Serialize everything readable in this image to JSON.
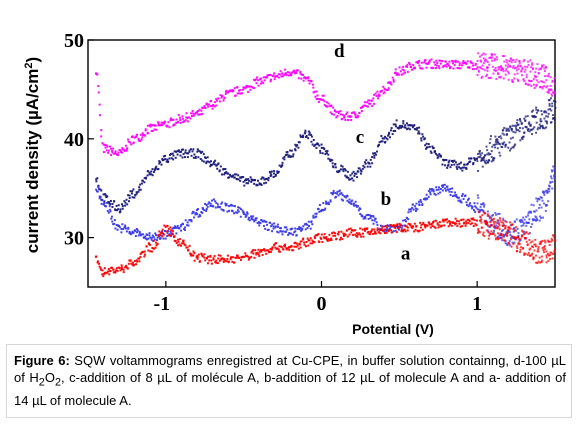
{
  "chart_data": {
    "type": "scatter",
    "title": "",
    "xlabel": "Potential (V)",
    "ylabel_parts": {
      "prefix": "current density (",
      "mu": "µ",
      "unit": "A/cm",
      "sup": "2",
      "suffix": ")"
    },
    "xlim": [
      -1.5,
      1.5
    ],
    "ylim": [
      25,
      50
    ],
    "x_ticks": [
      "-1",
      "0",
      "1"
    ],
    "y_ticks": [
      "30",
      "40",
      "50"
    ],
    "legend": "none",
    "grid": false,
    "series": [
      {
        "name": "d",
        "color": "#ff00ff",
        "x": [
          -1.45,
          -1.4,
          -1.3,
          -1.2,
          -1.1,
          -1.0,
          -0.9,
          -0.8,
          -0.7,
          -0.6,
          -0.5,
          -0.4,
          -0.3,
          -0.2,
          -0.15,
          -0.1,
          0.0,
          0.1,
          0.15,
          0.2,
          0.3,
          0.4,
          0.5,
          0.6,
          0.7,
          0.8,
          0.9,
          1.0,
          1.1,
          1.2,
          1.3,
          1.4,
          1.5
        ],
        "y": [
          47,
          39,
          38.5,
          40,
          41,
          41.5,
          42,
          42.5,
          43.5,
          44.5,
          45,
          45.8,
          46.3,
          46.8,
          46.5,
          46,
          44,
          42.5,
          42.2,
          42.3,
          43.5,
          45,
          46.8,
          47.5,
          47.6,
          47.5,
          47.5,
          47.5,
          47.3,
          47.1,
          46.8,
          46.3,
          45.5
        ]
      },
      {
        "name": "c",
        "color": "#1a1a7a",
        "x": [
          -1.45,
          -1.4,
          -1.3,
          -1.2,
          -1.1,
          -1.0,
          -0.9,
          -0.8,
          -0.7,
          -0.6,
          -0.5,
          -0.4,
          -0.3,
          -0.2,
          -0.1,
          0.0,
          0.1,
          0.2,
          0.3,
          0.4,
          0.5,
          0.6,
          0.7,
          0.8,
          0.9,
          1.0,
          1.1,
          1.2,
          1.3,
          1.4,
          1.5
        ],
        "y": [
          36,
          34,
          33,
          34.5,
          36.5,
          38,
          38.5,
          38.5,
          37.5,
          36.5,
          35.7,
          35.6,
          36.5,
          38.5,
          40.5,
          39,
          37,
          36.2,
          37.5,
          40,
          41.5,
          41,
          39,
          37.5,
          37.2,
          38,
          39,
          40,
          41,
          42,
          43
        ]
      },
      {
        "name": "b",
        "color": "#3a3ae8",
        "x": [
          -1.45,
          -1.4,
          -1.3,
          -1.2,
          -1.1,
          -1.0,
          -0.9,
          -0.8,
          -0.7,
          -0.6,
          -0.5,
          -0.4,
          -0.3,
          -0.2,
          -0.1,
          0.0,
          0.1,
          0.15,
          0.2,
          0.3,
          0.4,
          0.5,
          0.6,
          0.7,
          0.8,
          0.9,
          1.0,
          1.1,
          1.2,
          1.3,
          1.4,
          1.5
        ],
        "y": [
          35,
          33.5,
          31,
          30.5,
          30,
          30.3,
          31,
          32.5,
          33.5,
          33,
          32.5,
          31.5,
          31,
          30.5,
          31,
          33,
          34.5,
          34,
          33.5,
          32,
          31,
          31,
          33,
          34.5,
          35,
          34,
          33,
          31.5,
          30.5,
          31,
          33,
          36
        ]
      },
      {
        "name": "a",
        "color": "#ff0000",
        "x": [
          -1.45,
          -1.4,
          -1.3,
          -1.2,
          -1.1,
          -1.0,
          -0.9,
          -0.8,
          -0.7,
          -0.6,
          -0.5,
          -0.4,
          -0.3,
          -0.2,
          -0.1,
          0.0,
          0.1,
          0.2,
          0.3,
          0.4,
          0.5,
          0.6,
          0.7,
          0.8,
          0.9,
          1.0,
          1.1,
          1.2,
          1.3,
          1.4,
          1.5
        ],
        "y": [
          28,
          26.5,
          26.8,
          27.5,
          29,
          30.8,
          29.5,
          28,
          27.8,
          27.8,
          28,
          28.5,
          29,
          29,
          29.5,
          30,
          30.2,
          30.5,
          30.5,
          30.8,
          31,
          31,
          31.2,
          31.5,
          31.5,
          31.5,
          31,
          30.5,
          29.5,
          28.5,
          29
        ]
      }
    ],
    "annotations": [
      {
        "text": "d",
        "x": 0.08,
        "y": 48.3
      },
      {
        "text": "c",
        "x": 0.22,
        "y": 39.6
      },
      {
        "text": "b",
        "x": 0.38,
        "y": 33.3
      },
      {
        "text": "a",
        "x": 0.51,
        "y": 27.8
      }
    ]
  },
  "caption": {
    "label": "Figure 6:",
    "parts": [
      " SQW voltammograms enregistred at Cu-CPE, in buffer solution containng, d-100 ",
      "µL of H",
      "2",
      "O",
      "2",
      ", c-addition of 8 ",
      "µL of molécule A, b-addition of 12 ",
      "µL of molecule A and a- addition of 14 ",
      "µL of molecule A."
    ]
  }
}
